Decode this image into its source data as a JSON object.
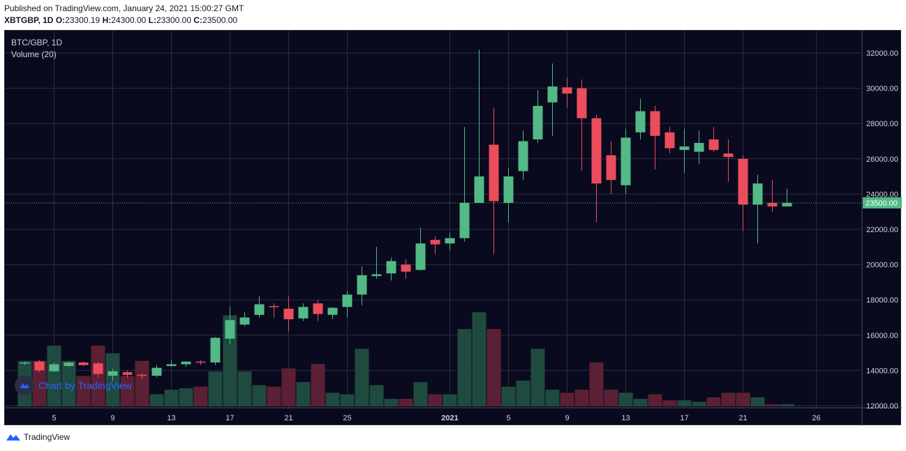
{
  "header": {
    "published": "Published on TradingView.com, January 24, 2021 15:00:27 GMT",
    "symbol": "XBTGBP, 1D",
    "o_label": "O:",
    "o": "23300.19",
    "h_label": "H:",
    "h": "24300.00",
    "l_label": "L:",
    "l": "23300.00",
    "c_label": "C:",
    "c": "23500.00"
  },
  "legend": {
    "pair": "BTC/GBP, 1D",
    "volume": "Volume (20)"
  },
  "watermark": "Chart by TradingView",
  "footer": {
    "brand": "TradingView"
  },
  "colors": {
    "background": "#0a0a1e",
    "grid": "#2a2e3f",
    "up": "#53b987",
    "down": "#eb4d5c",
    "up_volume": "#1f4a40",
    "down_volume": "#5c2034",
    "axis_text": "#d1d4dc",
    "last_price": "#53b987"
  },
  "chart_data": {
    "type": "candlestick",
    "title": "BTC/GBP, 1D",
    "ylim": [
      11800,
      33000
    ],
    "yticks": [
      12000,
      14000,
      16000,
      18000,
      20000,
      22000,
      24000,
      26000,
      28000,
      30000,
      32000
    ],
    "ytick_labels": [
      "12000.00",
      "14000.00",
      "16000.00",
      "18000.00",
      "20000.00",
      "22000.00",
      "24000.00",
      "26000.00",
      "28000.00",
      "30000.00",
      "32000.00"
    ],
    "xtick_labels": [
      {
        "date": "2020-12-05",
        "label": "5"
      },
      {
        "date": "2020-12-09",
        "label": "9"
      },
      {
        "date": "2020-12-13",
        "label": "13"
      },
      {
        "date": "2020-12-17",
        "label": "17"
      },
      {
        "date": "2020-12-21",
        "label": "21"
      },
      {
        "date": "2020-12-25",
        "label": "25"
      },
      {
        "date": "2021-01-01",
        "label": "2021"
      },
      {
        "date": "2021-01-05",
        "label": "5"
      },
      {
        "date": "2021-01-09",
        "label": "9"
      },
      {
        "date": "2021-01-13",
        "label": "13"
      },
      {
        "date": "2021-01-17",
        "label": "17"
      },
      {
        "date": "2021-01-21",
        "label": "21"
      },
      {
        "date": "2021-01-26",
        "label": "26"
      }
    ],
    "last_price": 23500,
    "last_price_label": "23500.00",
    "candles": [
      {
        "date": "2020-12-03",
        "o": 14400,
        "h": 14500,
        "l": 14300,
        "c": 14450,
        "v": 3
      },
      {
        "date": "2020-12-04",
        "o": 14500,
        "h": 14600,
        "l": 13900,
        "c": 14000,
        "v": 3
      },
      {
        "date": "2020-12-05",
        "o": 13950,
        "h": 14450,
        "l": 13900,
        "c": 14350,
        "v": 4
      },
      {
        "date": "2020-12-06",
        "o": 14250,
        "h": 14500,
        "l": 14200,
        "c": 14450,
        "v": 3
      },
      {
        "date": "2020-12-07",
        "o": 14450,
        "h": 14500,
        "l": 14250,
        "c": 14300,
        "v": 2
      },
      {
        "date": "2020-12-08",
        "o": 14400,
        "h": 14500,
        "l": 13600,
        "c": 13800,
        "v": 4
      },
      {
        "date": "2020-12-09",
        "o": 13700,
        "h": 14100,
        "l": 13400,
        "c": 13950,
        "v": 3.5
      },
      {
        "date": "2020-12-10",
        "o": 13900,
        "h": 14000,
        "l": 13600,
        "c": 13750,
        "v": 2
      },
      {
        "date": "2020-12-11",
        "o": 13750,
        "h": 13850,
        "l": 13500,
        "c": 13700,
        "v": 3
      },
      {
        "date": "2020-12-12",
        "o": 13700,
        "h": 14300,
        "l": 13600,
        "c": 14150,
        "v": 0.8
      },
      {
        "date": "2020-12-13",
        "o": 14250,
        "h": 14600,
        "l": 14200,
        "c": 14350,
        "v": 1.1
      },
      {
        "date": "2020-12-14",
        "o": 14350,
        "h": 14500,
        "l": 14200,
        "c": 14500,
        "v": 1.2
      },
      {
        "date": "2020-12-15",
        "o": 14500,
        "h": 14600,
        "l": 14300,
        "c": 14450,
        "v": 1.3
      },
      {
        "date": "2020-12-16",
        "o": 14450,
        "h": 15900,
        "l": 14300,
        "c": 15850,
        "v": 2.3
      },
      {
        "date": "2020-12-17",
        "o": 15800,
        "h": 17600,
        "l": 15500,
        "c": 16850,
        "v": 6
      },
      {
        "date": "2020-12-18",
        "o": 16600,
        "h": 17300,
        "l": 16500,
        "c": 17000,
        "v": 2.3
      },
      {
        "date": "2020-12-19",
        "o": 17150,
        "h": 18200,
        "l": 17000,
        "c": 17750,
        "v": 1.4
      },
      {
        "date": "2020-12-20",
        "o": 17650,
        "h": 17800,
        "l": 17000,
        "c": 17600,
        "v": 1.3
      },
      {
        "date": "2020-12-21",
        "o": 17500,
        "h": 18200,
        "l": 16200,
        "c": 16900,
        "v": 2.5
      },
      {
        "date": "2020-12-22",
        "o": 16950,
        "h": 17800,
        "l": 16800,
        "c": 17600,
        "v": 1.6
      },
      {
        "date": "2020-12-23",
        "o": 17800,
        "h": 18000,
        "l": 16800,
        "c": 17200,
        "v": 2.8
      },
      {
        "date": "2020-12-24",
        "o": 17150,
        "h": 17600,
        "l": 16900,
        "c": 17550,
        "v": 0.9
      },
      {
        "date": "2020-12-25",
        "o": 17600,
        "h": 18500,
        "l": 17000,
        "c": 18300,
        "v": 0.8
      },
      {
        "date": "2020-12-26",
        "o": 18300,
        "h": 19900,
        "l": 17700,
        "c": 19400,
        "v": 3.8
      },
      {
        "date": "2020-12-27",
        "o": 19350,
        "h": 21000,
        "l": 19200,
        "c": 19450,
        "v": 1.4
      },
      {
        "date": "2020-12-28",
        "o": 19500,
        "h": 20400,
        "l": 19100,
        "c": 20200,
        "v": 0.5
      },
      {
        "date": "2020-12-29",
        "o": 20000,
        "h": 20300,
        "l": 19200,
        "c": 19600,
        "v": 0.5
      },
      {
        "date": "2020-12-30",
        "o": 19700,
        "h": 22100,
        "l": 19650,
        "c": 21200,
        "v": 1.6
      },
      {
        "date": "2020-12-31",
        "o": 21400,
        "h": 21600,
        "l": 20600,
        "c": 21150,
        "v": 0.8
      },
      {
        "date": "2021-01-01",
        "o": 21200,
        "h": 21800,
        "l": 20800,
        "c": 21500,
        "v": 0.8
      },
      {
        "date": "2021-01-02",
        "o": 21500,
        "h": 27800,
        "l": 21300,
        "c": 23500,
        "v": 5.1
      },
      {
        "date": "2021-01-03",
        "o": 23500,
        "h": 32200,
        "l": 23500,
        "c": 25000,
        "v": 6.2
      },
      {
        "date": "2021-01-04",
        "o": 26800,
        "h": 28900,
        "l": 20600,
        "c": 23600,
        "v": 5.1
      },
      {
        "date": "2021-01-05",
        "o": 23500,
        "h": 25500,
        "l": 22400,
        "c": 25000,
        "v": 1.3
      },
      {
        "date": "2021-01-06",
        "o": 25300,
        "h": 27600,
        "l": 24800,
        "c": 27000,
        "v": 1.7
      },
      {
        "date": "2021-01-07",
        "o": 27100,
        "h": 29900,
        "l": 26900,
        "c": 29000,
        "v": 3.8
      },
      {
        "date": "2021-01-08",
        "o": 29200,
        "h": 31400,
        "l": 27300,
        "c": 30100,
        "v": 1.1
      },
      {
        "date": "2021-01-09",
        "o": 30050,
        "h": 30600,
        "l": 28900,
        "c": 29700,
        "v": 0.9
      },
      {
        "date": "2021-01-10",
        "o": 30000,
        "h": 30500,
        "l": 25300,
        "c": 28300,
        "v": 1.1
      },
      {
        "date": "2021-01-11",
        "o": 28300,
        "h": 28500,
        "l": 22400,
        "c": 24600,
        "v": 2.9
      },
      {
        "date": "2021-01-12",
        "o": 26200,
        "h": 27000,
        "l": 24000,
        "c": 24800,
        "v": 1.1
      },
      {
        "date": "2021-01-13",
        "o": 24500,
        "h": 27700,
        "l": 24000,
        "c": 27200,
        "v": 0.9
      },
      {
        "date": "2021-01-14",
        "o": 27500,
        "h": 29400,
        "l": 27100,
        "c": 28700,
        "v": 0.5
      },
      {
        "date": "2021-01-15",
        "o": 28700,
        "h": 29000,
        "l": 25400,
        "c": 27300,
        "v": 0.8
      },
      {
        "date": "2021-01-16",
        "o": 27500,
        "h": 27800,
        "l": 26300,
        "c": 26600,
        "v": 0.4
      },
      {
        "date": "2021-01-17",
        "o": 26500,
        "h": 27700,
        "l": 25200,
        "c": 26700,
        "v": 0.4
      },
      {
        "date": "2021-01-18",
        "o": 26400,
        "h": 27600,
        "l": 25700,
        "c": 26900,
        "v": 0.3
      },
      {
        "date": "2021-01-19",
        "o": 27100,
        "h": 27800,
        "l": 26400,
        "c": 26500,
        "v": 0.6
      },
      {
        "date": "2021-01-20",
        "o": 26300,
        "h": 27100,
        "l": 24700,
        "c": 26100,
        "v": 0.9
      },
      {
        "date": "2021-01-21",
        "o": 26000,
        "h": 26200,
        "l": 21900,
        "c": 23400,
        "v": 0.9
      },
      {
        "date": "2021-01-22",
        "o": 23400,
        "h": 25100,
        "l": 21200,
        "c": 24600,
        "v": 0.6
      },
      {
        "date": "2021-01-23",
        "o": 23500,
        "h": 24800,
        "l": 23000,
        "c": 23300,
        "v": 0.15
      },
      {
        "date": "2021-01-24",
        "o": 23300,
        "h": 24300,
        "l": 23300,
        "c": 23500,
        "v": 0.15
      }
    ]
  }
}
